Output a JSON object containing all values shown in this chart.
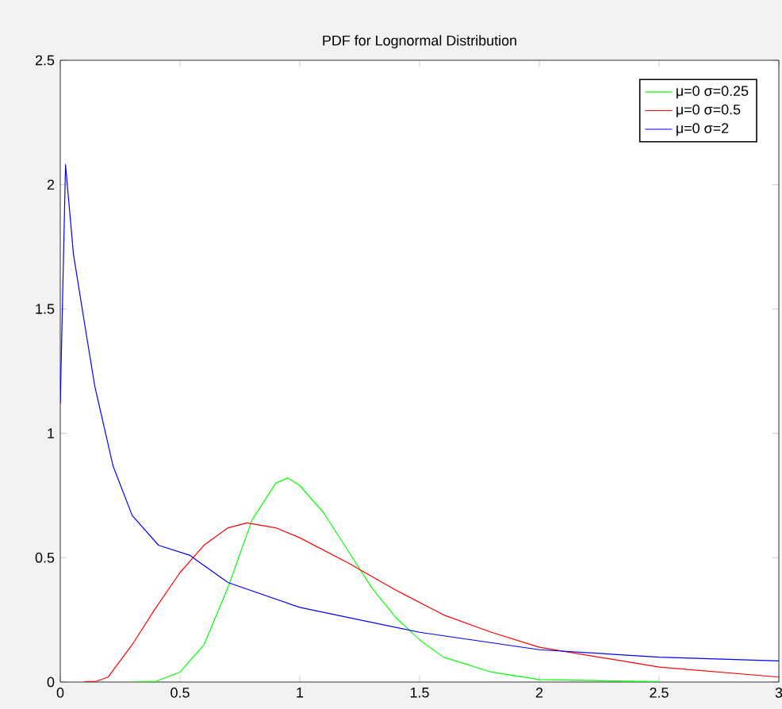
{
  "chart_data": {
    "type": "line",
    "title": "PDF for Lognormal Distribution",
    "xlim": [
      0,
      3
    ],
    "ylim": [
      0,
      2.5
    ],
    "xticks": [
      0,
      0.5,
      1,
      1.5,
      2,
      2.5,
      3
    ],
    "yticks": [
      0,
      0.5,
      1,
      1.5,
      2,
      2.5
    ],
    "legend": "top right",
    "grid": false,
    "marker": "none",
    "line_style": "solid",
    "series": [
      {
        "name": "μ=0 σ=0.25",
        "color": "#00ff00",
        "x": [
          0.3,
          0.4,
          0.5,
          0.6,
          0.7,
          0.8,
          0.9,
          0.95,
          1.0,
          1.1,
          1.2,
          1.3,
          1.4,
          1.5,
          1.6,
          1.8,
          2.0,
          2.5
        ],
        "values": [
          0,
          0.003,
          0.04,
          0.15,
          0.38,
          0.65,
          0.8,
          0.82,
          0.79,
          0.68,
          0.53,
          0.38,
          0.26,
          0.17,
          0.1,
          0.04,
          0.01,
          0.001
        ]
      },
      {
        "name": "μ=0 σ=0.5",
        "color": "#ff0000",
        "x": [
          0.1,
          0.15,
          0.2,
          0.3,
          0.4,
          0.5,
          0.6,
          0.7,
          0.78,
          0.9,
          1.0,
          1.2,
          1.4,
          1.6,
          1.8,
          2.0,
          2.5,
          3.0
        ],
        "values": [
          0.001,
          0.003,
          0.02,
          0.15,
          0.3,
          0.44,
          0.55,
          0.62,
          0.64,
          0.62,
          0.58,
          0.48,
          0.37,
          0.27,
          0.2,
          0.14,
          0.06,
          0.02
        ]
      },
      {
        "name": "μ=0 σ=2",
        "color": "#0000ff",
        "x": [
          0,
          0.022,
          0.055,
          0.1,
          0.144,
          0.22,
          0.3,
          0.41,
          0.54,
          0.7,
          1.0,
          1.5,
          2.0,
          2.5,
          3.0
        ],
        "values": [
          1.12,
          2.08,
          1.72,
          1.45,
          1.19,
          0.87,
          0.67,
          0.55,
          0.51,
          0.4,
          0.3,
          0.2,
          0.13,
          0.1,
          0.085
        ]
      }
    ]
  }
}
